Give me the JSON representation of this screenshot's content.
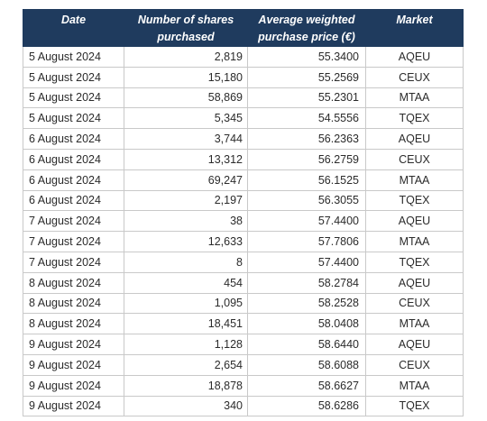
{
  "table": {
    "headers": {
      "date": "Date",
      "shares_line1": "Number of shares",
      "shares_line2": "purchased",
      "price_line1": "Average weighted",
      "price_line2": "purchase price (€)",
      "market": "Market"
    },
    "rows": [
      {
        "date": "5 August 2024",
        "shares": "2,819",
        "price": "55.3400",
        "market": "AQEU"
      },
      {
        "date": "5 August 2024",
        "shares": "15,180",
        "price": "55.2569",
        "market": "CEUX"
      },
      {
        "date": "5 August 2024",
        "shares": "58,869",
        "price": "55.2301",
        "market": "MTAA"
      },
      {
        "date": "5 August 2024",
        "shares": "5,345",
        "price": "54.5556",
        "market": "TQEX"
      },
      {
        "date": "6 August 2024",
        "shares": "3,744",
        "price": "56.2363",
        "market": "AQEU"
      },
      {
        "date": "6 August 2024",
        "shares": "13,312",
        "price": "56.2759",
        "market": "CEUX"
      },
      {
        "date": "6 August 2024",
        "shares": "69,247",
        "price": "56.1525",
        "market": "MTAA"
      },
      {
        "date": "6 August 2024",
        "shares": "2,197",
        "price": "56.3055",
        "market": "TQEX"
      },
      {
        "date": "7 August 2024",
        "shares": "38",
        "price": "57.4400",
        "market": "AQEU"
      },
      {
        "date": "7 August 2024",
        "shares": "12,633",
        "price": "57.7806",
        "market": "MTAA"
      },
      {
        "date": "7 August 2024",
        "shares": "8",
        "price": "57.4400",
        "market": "TQEX"
      },
      {
        "date": "8 August 2024",
        "shares": "454",
        "price": "58.2784",
        "market": "AQEU"
      },
      {
        "date": "8 August 2024",
        "shares": "1,095",
        "price": "58.2528",
        "market": "CEUX"
      },
      {
        "date": "8 August 2024",
        "shares": "18,451",
        "price": "58.0408",
        "market": "MTAA"
      },
      {
        "date": "9 August 2024",
        "shares": "1,128",
        "price": "58.6440",
        "market": "AQEU"
      },
      {
        "date": "9 August 2024",
        "shares": "2,654",
        "price": "58.6088",
        "market": "CEUX"
      },
      {
        "date": "9 August 2024",
        "shares": "18,878",
        "price": "58.6627",
        "market": "MTAA"
      },
      {
        "date": "9 August 2024",
        "shares": "340",
        "price": "58.6286",
        "market": "TQEX"
      }
    ]
  },
  "colors": {
    "header_background": "#1f3b5e",
    "header_text": "#ffffff",
    "grid_lines": "#c9c9c9"
  }
}
